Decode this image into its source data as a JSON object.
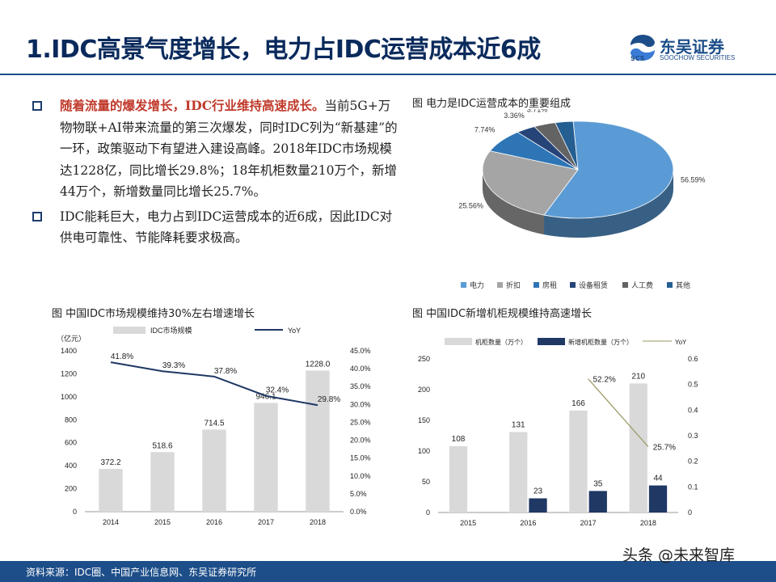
{
  "header": {
    "title": "1.IDC高景气度增长，电力占IDC运营成本近6成"
  },
  "logo": {
    "name": "东吴证券",
    "sub": "SOOCHOW SECURITIES",
    "mark": "SCS"
  },
  "bullets": [
    {
      "highlight": "随着流量的爆发增长，IDC行业维持高速成长。",
      "text": "当前5G+万物物联+AI带来流量的第三次爆发，同时IDC列为“新基建”的一环，政策驱动下有望进入建设高峰。2018年IDC市场规模达1228亿，同比增长29.8%；18年机柜数量210万个，新增44万个，新增数量同比增长25.7%。"
    },
    {
      "highlight": "",
      "text": "IDC能耗巨大，电力占到IDC运营成本的近6成，因此IDC对供电可靠性、节能降耗要求极高。"
    }
  ],
  "captions": {
    "pie": "图  电力是IDC运营成本的重要组成",
    "market": "图  中国IDC市场规模维持30%左右增速增长",
    "cabinet": "图  中国IDC新增机柜规模维持高速增长"
  },
  "footer": {
    "source": "资料来源：IDC圈、中国产业信息网、东吴证券研究所"
  },
  "watermark": "头条 @未来智库",
  "colors": {
    "navy": "#1d4e89",
    "title": "#0a2a5c",
    "bar_gray": "#d9d9d9",
    "bar_navy": "#1f3864",
    "line_navy": "#1f3864",
    "line_olive": "#9a9560"
  },
  "chart_data": [
    {
      "type": "pie",
      "title": "电力是IDC运营成本的重要组成",
      "categories": [
        "电力",
        "折扣",
        "房租",
        "设备租赁",
        "人工费",
        "其他"
      ],
      "values": [
        56.59,
        25.56,
        7.74,
        3.36,
        3.71,
        3.05
      ],
      "value_labels": [
        "56.59%",
        "25.56%",
        "7.74%",
        "3.36%",
        "3.71%",
        "3.05%"
      ],
      "colors": [
        "#5b9bd5",
        "#a5a5a5",
        "#2e75b6",
        "#264478",
        "#636363",
        "#255e91"
      ],
      "legend": "bottom"
    },
    {
      "type": "bar",
      "title": "中国IDC市场规模维持30%左右增速增长",
      "categories": [
        "2014",
        "2015",
        "2016",
        "2017",
        "2018"
      ],
      "series": [
        {
          "name": "IDC市场规模",
          "kind": "bar",
          "values": [
            372.2,
            518.6,
            714.5,
            946.1,
            1228.0
          ],
          "labels": [
            "372.2",
            "518.6",
            "714.5",
            "946.1",
            "1228.0"
          ]
        },
        {
          "name": "YoY",
          "kind": "line",
          "values": [
            41.8,
            39.3,
            37.8,
            32.4,
            29.8
          ],
          "labels": [
            "41.8%",
            "39.3%",
            "37.8%",
            "32.4%",
            "29.8%"
          ]
        }
      ],
      "ylabel": "（亿元）",
      "ylim": [
        0,
        1400
      ],
      "yticks": [
        "0",
        "200",
        "400",
        "600",
        "800",
        "1000",
        "1200",
        "1400"
      ],
      "y2lim": [
        0,
        45
      ],
      "y2ticks": [
        "0.0%",
        "5.0%",
        "10.0%",
        "15.0%",
        "20.0%",
        "25.0%",
        "30.0%",
        "35.0%",
        "40.0%",
        "45.0%"
      ],
      "legend": "top"
    },
    {
      "type": "bar",
      "title": "中国IDC新增机柜规模维持高速增长",
      "categories": [
        "2015",
        "2016",
        "2017",
        "2018"
      ],
      "series": [
        {
          "name": "机柜数量（万个）",
          "kind": "bar",
          "values": [
            108,
            131,
            166,
            210
          ],
          "labels": [
            "108",
            "131",
            "166",
            "210"
          ]
        },
        {
          "name": "新增机柜数量（万个）",
          "kind": "bar",
          "values": [
            null,
            23,
            35,
            44
          ],
          "labels": [
            "",
            "23",
            "35",
            "44"
          ]
        },
        {
          "name": "YoY",
          "kind": "line",
          "values": [
            null,
            null,
            0.522,
            0.257
          ],
          "labels": [
            "",
            "",
            "52.2%",
            "25.7%"
          ]
        }
      ],
      "ylim": [
        0,
        250
      ],
      "yticks": [
        "0",
        "50",
        "100",
        "150",
        "200",
        "250"
      ],
      "y2lim": [
        0,
        0.6
      ],
      "y2ticks": [
        "0",
        "0.1",
        "0.2",
        "0.3",
        "0.4",
        "0.5",
        "0.6"
      ],
      "legend": "top"
    }
  ]
}
